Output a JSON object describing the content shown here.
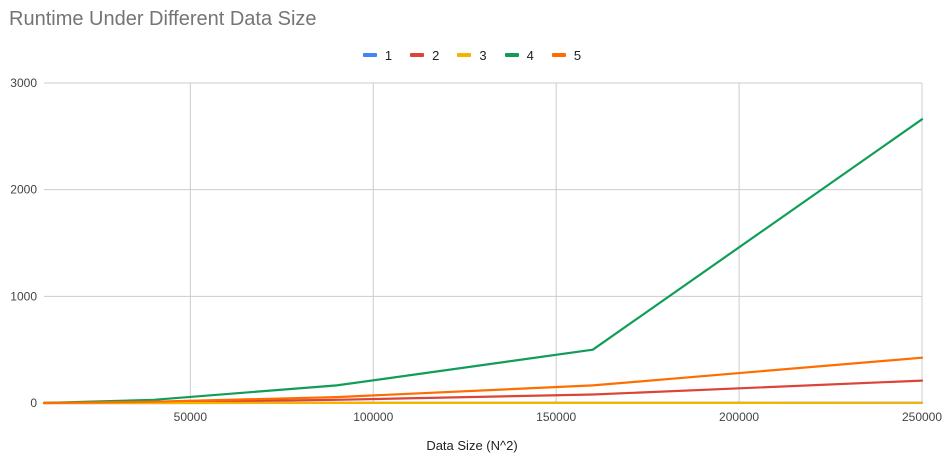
{
  "chart_data": {
    "type": "line",
    "title": "Runtime Under Different Data Size",
    "xlabel": "Data Size (N^2)",
    "ylabel": "",
    "xlim": [
      10000,
      250000
    ],
    "ylim": [
      0,
      3000
    ],
    "x_ticks": [
      "50000",
      "100000",
      "150000",
      "200000",
      "250000"
    ],
    "y_ticks": [
      "0",
      "1000",
      "2000",
      "3000"
    ],
    "grid": true,
    "legend_position": "top",
    "x": [
      10000,
      40000,
      90000,
      160000,
      250000
    ],
    "series": [
      {
        "name": "1",
        "color": "#4285F4",
        "values": [
          0,
          0.2,
          0.5,
          1,
          1.5
        ]
      },
      {
        "name": "2",
        "color": "#DB4437",
        "values": [
          0,
          8,
          30,
          80,
          210
        ]
      },
      {
        "name": "3",
        "color": "#F4B400",
        "values": [
          0,
          0.3,
          0.6,
          1,
          2
        ]
      },
      {
        "name": "4",
        "color": "#0F9D58",
        "values": [
          0,
          30,
          165,
          500,
          2660
        ]
      },
      {
        "name": "5",
        "color": "#FF6D01",
        "values": [
          0,
          12,
          55,
          165,
          425
        ]
      }
    ]
  }
}
